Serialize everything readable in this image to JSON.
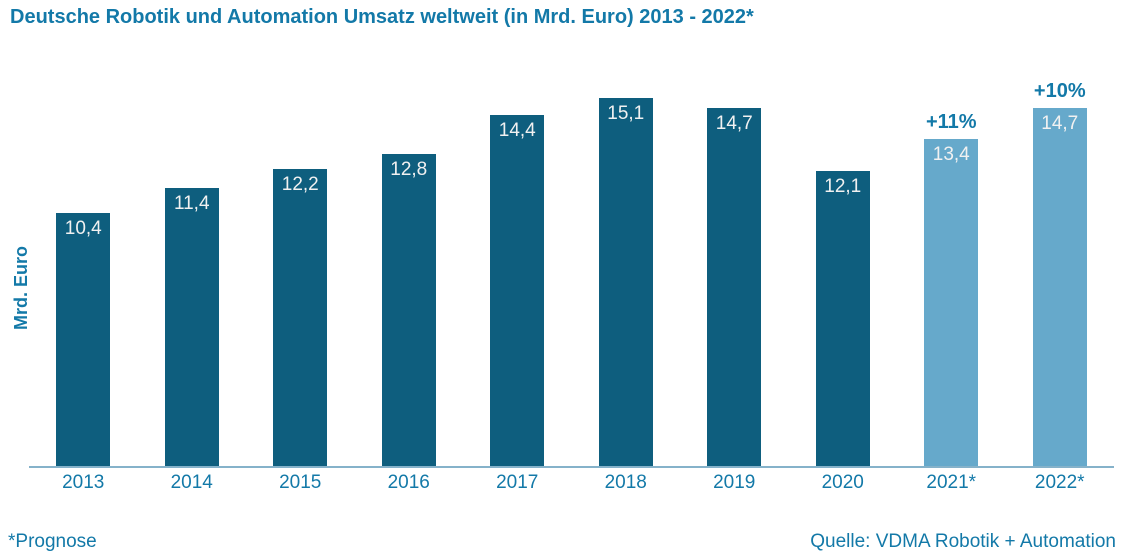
{
  "title": "Deutsche Robotik und Automation Umsatz weltweit (in Mrd. Euro) 2013 - 2022*",
  "footer": {
    "left_note": "*Prognose",
    "source": "Quelle: VDMA Robotik + Automation"
  },
  "colors": {
    "bar": "#0E5E7E",
    "bar_forecast": "#66A9CB",
    "text_accent": "#1379A8",
    "value_label": "#F1F1F1",
    "axis_line": "#85B2CA",
    "background": "#FFFFFF"
  },
  "chart_data": {
    "type": "bar",
    "title": "Deutsche Robotik und Automation Umsatz weltweit (in Mrd. Euro) 2013 - 2022*",
    "categories": [
      "2013",
      "2014",
      "2015",
      "2016",
      "2017",
      "2018",
      "2019",
      "2020",
      "2021*",
      "2022*"
    ],
    "values": [
      10.4,
      11.4,
      12.2,
      12.8,
      14.4,
      15.1,
      14.7,
      12.1,
      13.4,
      14.7
    ],
    "value_labels": [
      "10,4",
      "11,4",
      "12,2",
      "12,8",
      "14,4",
      "15,1",
      "14,7",
      "12,1",
      "13,4",
      "14,7"
    ],
    "forecast_categories": [
      "2021*",
      "2022*"
    ],
    "annotations": [
      {
        "category": "2021*",
        "label": "+11%"
      },
      {
        "category": "2022*",
        "label": "+10%"
      }
    ],
    "xlabel": "",
    "ylabel": "Mrd. Euro",
    "ylim": [
      0,
      16.25
    ],
    "grid": false,
    "legend": "none"
  }
}
